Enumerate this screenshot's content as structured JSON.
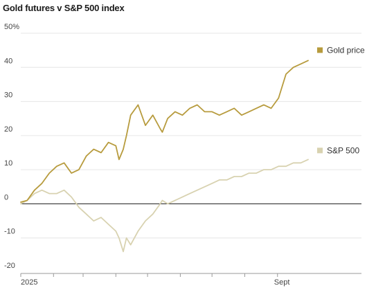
{
  "chart_data": {
    "type": "line",
    "title": "Gold futures v S&P 500 index",
    "xlabel": "",
    "ylabel": "",
    "ylim": [
      -20,
      50
    ],
    "y_ticks": [
      50,
      40,
      30,
      20,
      10,
      0,
      -10,
      -20
    ],
    "y_tick_labels": [
      "50%",
      "40",
      "30",
      "20",
      "10",
      "0",
      "-10",
      "-20"
    ],
    "x_tick_labels": [
      "2025",
      "Sept"
    ],
    "grid": true,
    "legend": "right, at line ends",
    "series": [
      {
        "name": "Gold price",
        "color": "#b79b3d",
        "x": [
          "2025-01-01",
          "2025-01-07",
          "2025-01-14",
          "2025-01-21",
          "2025-01-28",
          "2025-02-04",
          "2025-02-11",
          "2025-02-18",
          "2025-02-25",
          "2025-03-04",
          "2025-03-11",
          "2025-03-18",
          "2025-03-25",
          "2025-04-01",
          "2025-04-04",
          "2025-04-08",
          "2025-04-11",
          "2025-04-15",
          "2025-04-22",
          "2025-04-29",
          "2025-05-06",
          "2025-05-13",
          "2025-05-15",
          "2025-05-20",
          "2025-05-27",
          "2025-06-03",
          "2025-06-10",
          "2025-06-17",
          "2025-06-24",
          "2025-07-01",
          "2025-07-08",
          "2025-07-15",
          "2025-07-22",
          "2025-07-29",
          "2025-08-05",
          "2025-08-12",
          "2025-08-19",
          "2025-08-26",
          "2025-09-02",
          "2025-09-09",
          "2025-09-16",
          "2025-09-23",
          "2025-09-30"
        ],
        "values": [
          0.5,
          1,
          4,
          6,
          9,
          11,
          12,
          9,
          10,
          14,
          16,
          15,
          18,
          17,
          13,
          16,
          20,
          26,
          29,
          23,
          26,
          22,
          21,
          25,
          27,
          26,
          28,
          29,
          27,
          27,
          26,
          27,
          28,
          26,
          27,
          28,
          29,
          28,
          31,
          38,
          40,
          41,
          42
        ]
      },
      {
        "name": "S&P 500",
        "color": "#d8d2b0",
        "x": [
          "2025-01-01",
          "2025-01-07",
          "2025-01-14",
          "2025-01-21",
          "2025-01-28",
          "2025-02-04",
          "2025-02-11",
          "2025-02-18",
          "2025-02-25",
          "2025-03-04",
          "2025-03-11",
          "2025-03-18",
          "2025-03-25",
          "2025-04-01",
          "2025-04-04",
          "2025-04-08",
          "2025-04-11",
          "2025-04-15",
          "2025-04-22",
          "2025-04-29",
          "2025-05-06",
          "2025-05-13",
          "2025-05-15",
          "2025-05-20",
          "2025-05-27",
          "2025-06-03",
          "2025-06-10",
          "2025-06-17",
          "2025-06-24",
          "2025-07-01",
          "2025-07-08",
          "2025-07-15",
          "2025-07-22",
          "2025-07-29",
          "2025-08-05",
          "2025-08-12",
          "2025-08-19",
          "2025-08-26",
          "2025-09-02",
          "2025-09-09",
          "2025-09-16",
          "2025-09-23",
          "2025-09-30"
        ],
        "values": [
          0,
          1,
          3,
          4,
          3,
          3,
          4,
          2,
          -1,
          -3,
          -5,
          -4,
          -6,
          -8,
          -10,
          -14,
          -10,
          -12,
          -8,
          -5,
          -3,
          0,
          1,
          0,
          1,
          2,
          3,
          4,
          5,
          6,
          7,
          7,
          8,
          8,
          9,
          9,
          10,
          10,
          11,
          11,
          12,
          12,
          13
        ]
      }
    ]
  }
}
